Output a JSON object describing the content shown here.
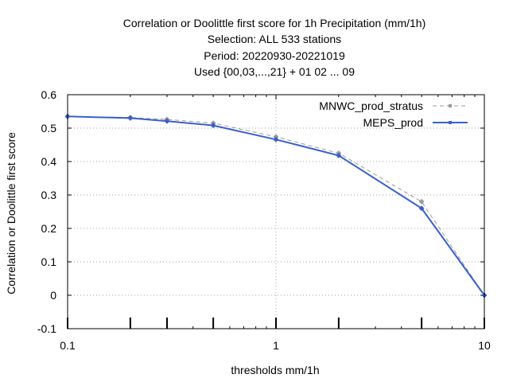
{
  "chart_data": {
    "type": "line",
    "title_lines": [
      "Correlation or Doolittle first score  for 1h Precipitation (mm/1h)",
      "Selection: ALL    533 stations",
      "Period: 20220930-20221019",
      "Used {00,03,...,21} + 01 02 ... 09"
    ],
    "xlabel": "thresholds mm/1h",
    "ylabel": "Correlation or Doolittle first score",
    "x_scale": "log",
    "xlim": [
      0.1,
      10
    ],
    "ylim": [
      -0.1,
      0.6
    ],
    "x_ticks": [
      0.1,
      1,
      10
    ],
    "x_tick_labels": [
      "0.1",
      "1",
      "10"
    ],
    "y_ticks": [
      -0.1,
      0,
      0.1,
      0.2,
      0.3,
      0.4,
      0.5,
      0.6
    ],
    "y_tick_labels": [
      "-0.1",
      "0",
      "0.1",
      "0.2",
      "0.3",
      "0.4",
      "0.5",
      "0.6"
    ],
    "grid": true,
    "legend_position": "top-right",
    "threshold_markers_x": [
      0.1,
      0.2,
      0.3,
      0.5,
      1,
      2,
      5,
      10
    ],
    "series": [
      {
        "name": "MNWC_prod_stratus",
        "color": "#999999",
        "style": "dashed",
        "x": [
          0.1,
          0.2,
          0.3,
          0.5,
          1,
          2,
          5,
          10
        ],
        "y": [
          0.535,
          0.532,
          0.526,
          0.515,
          0.474,
          0.425,
          0.28,
          0.0
        ]
      },
      {
        "name": "MEPS_prod",
        "color": "#3a5fcd",
        "style": "solid",
        "x": [
          0.1,
          0.2,
          0.3,
          0.5,
          1,
          2,
          5,
          10
        ],
        "y": [
          0.535,
          0.53,
          0.521,
          0.508,
          0.466,
          0.418,
          0.26,
          0.0
        ]
      }
    ]
  }
}
